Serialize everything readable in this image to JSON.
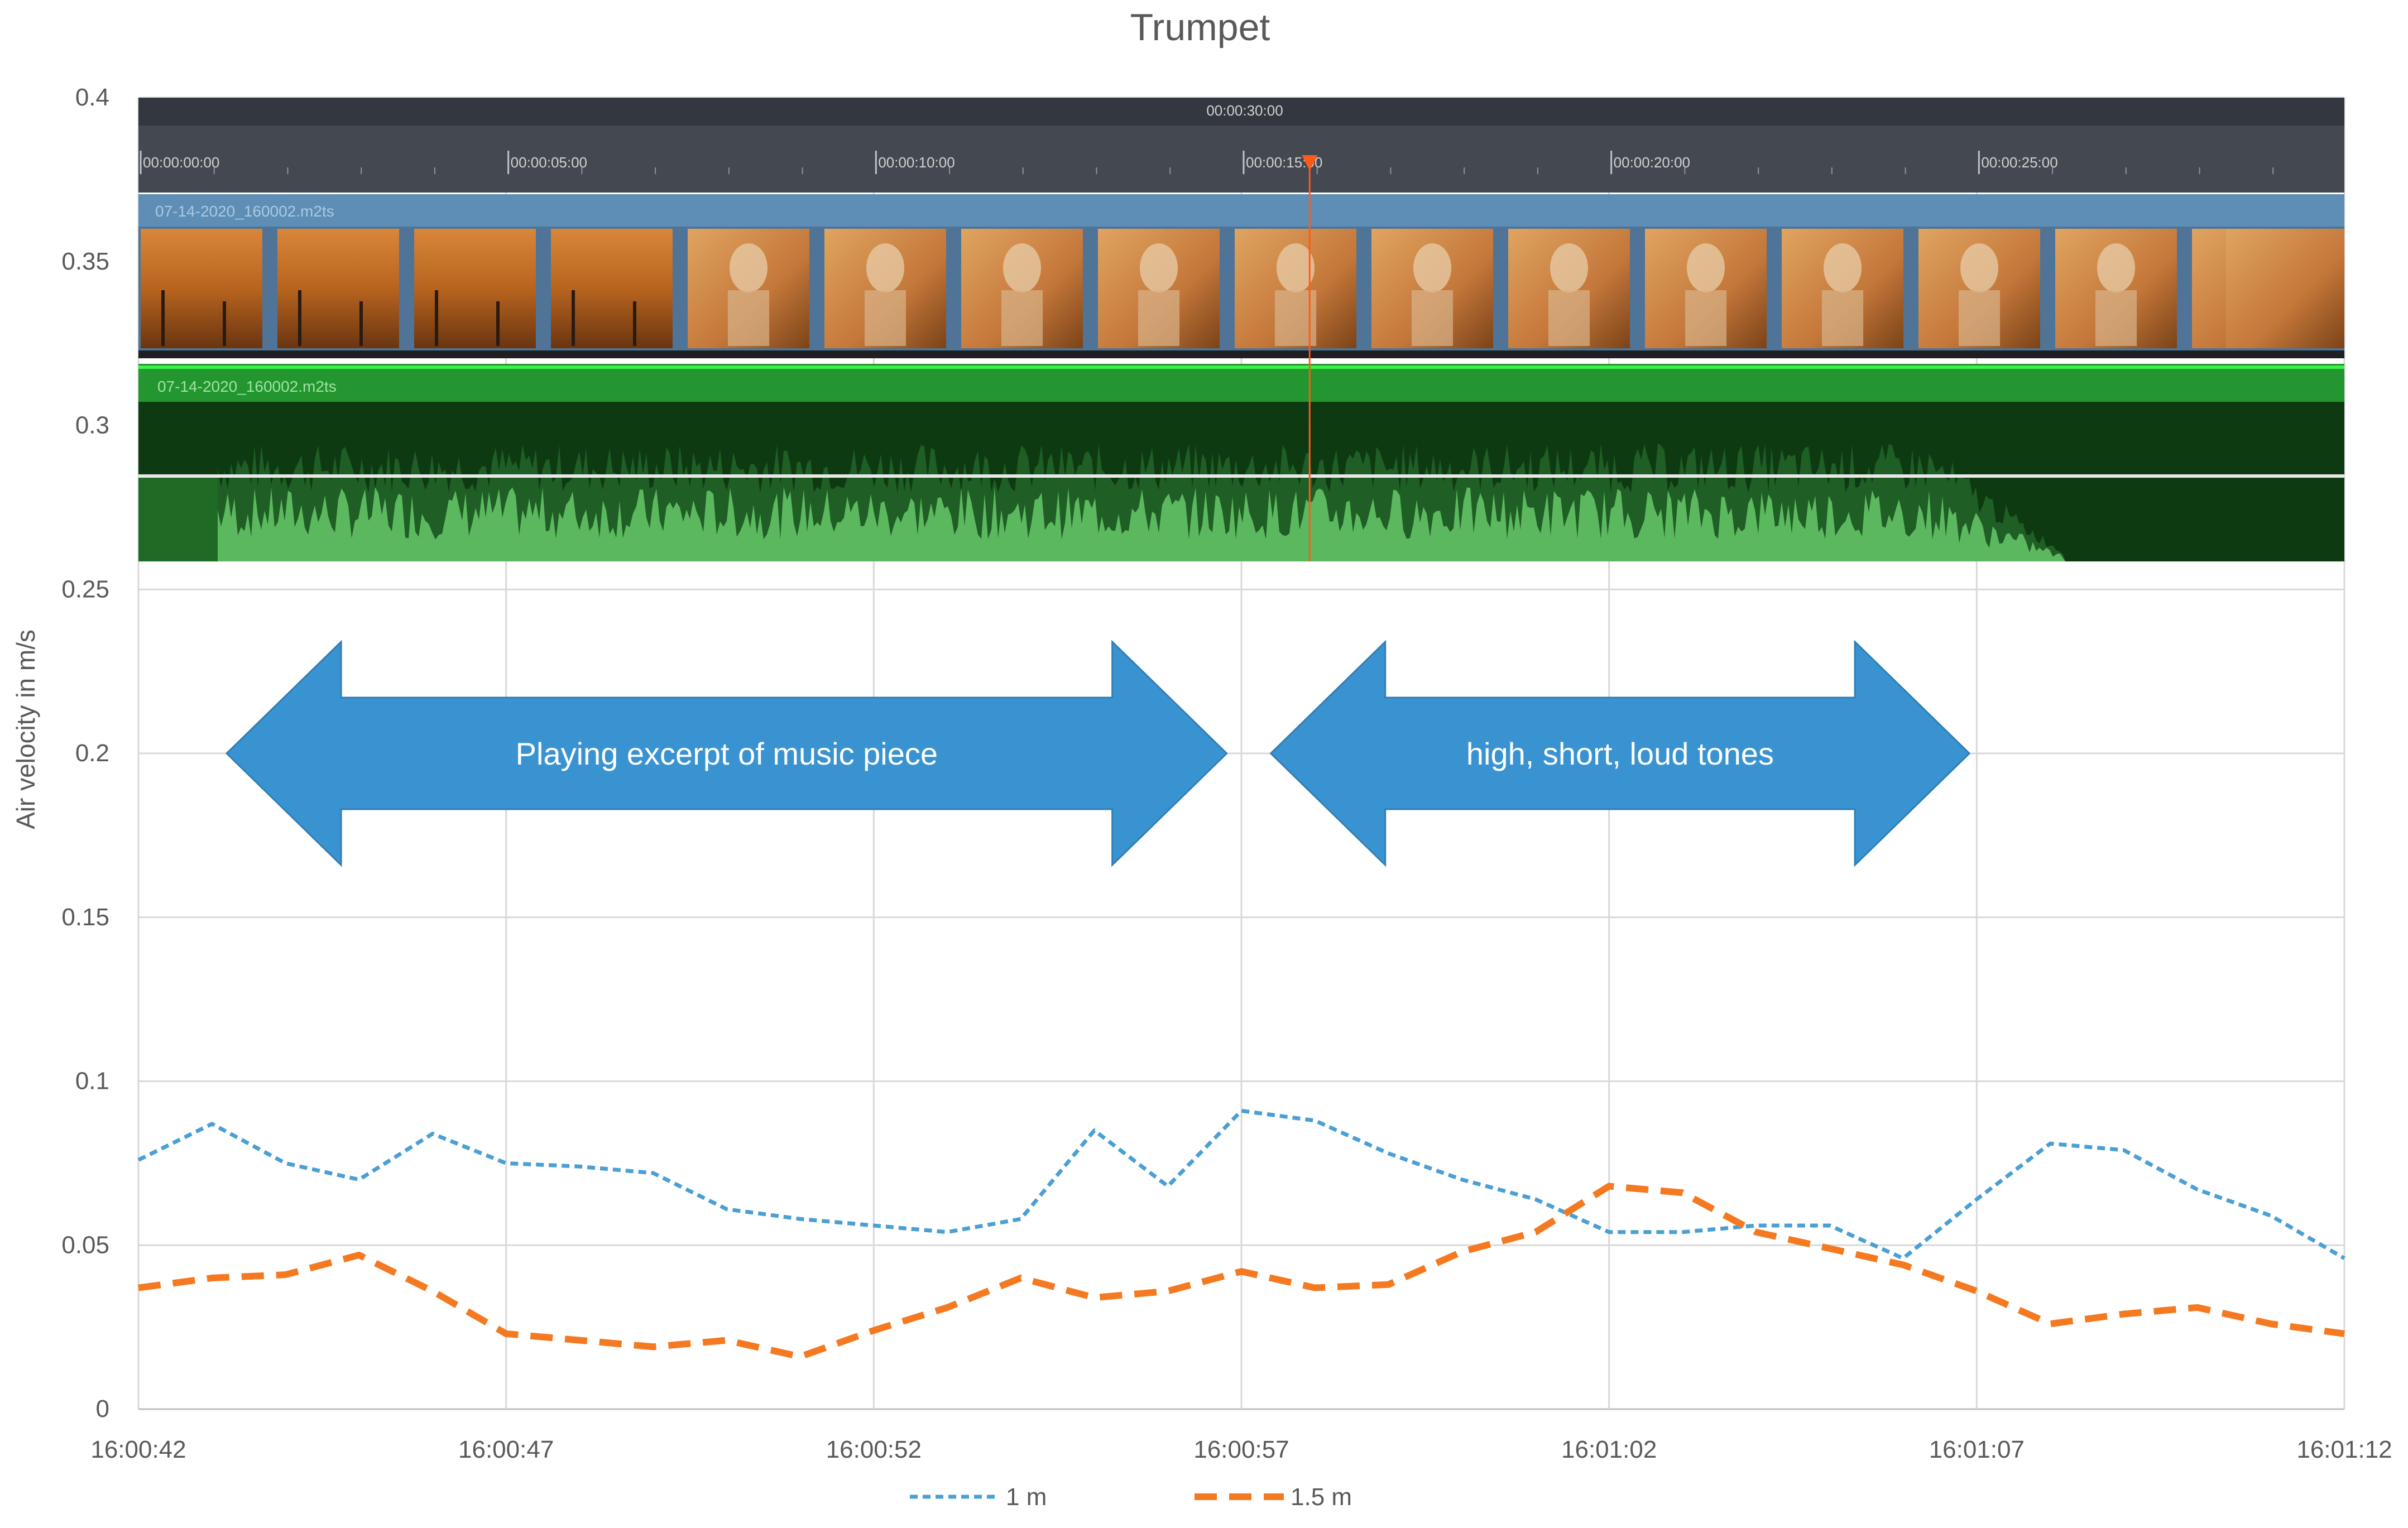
{
  "chart_data": {
    "type": "line",
    "title": "Trumpet",
    "xlabel": "",
    "ylabel": "Air velocity  in m/s",
    "ylim": [
      0,
      0.4
    ],
    "y_ticks": [
      "0",
      "0.05",
      "0.1",
      "0.15",
      "0.2",
      "0.25",
      "0.3",
      "0.35",
      "0.4"
    ],
    "xlim": [
      "16:00:42",
      "16:01:12"
    ],
    "x_ticks": [
      "16:00:42",
      "16:00:47",
      "16:00:52",
      "16:00:57",
      "16:01:02",
      "16:01:07",
      "16:01:12"
    ],
    "grid": true,
    "legend_position": "bottom",
    "x": [
      "16:00:42",
      "16:00:43",
      "16:00:44",
      "16:00:45",
      "16:00:46",
      "16:00:47",
      "16:00:48",
      "16:00:49",
      "16:00:50",
      "16:00:51",
      "16:00:52",
      "16:00:53",
      "16:00:54",
      "16:00:55",
      "16:00:56",
      "16:00:57",
      "16:00:58",
      "16:00:59",
      "16:01:00",
      "16:01:01",
      "16:01:02",
      "16:01:03",
      "16:01:04",
      "16:01:05",
      "16:01:06",
      "16:01:07",
      "16:01:08",
      "16:01:09",
      "16:01:10",
      "16:01:11",
      "16:01:12"
    ],
    "series": [
      {
        "name": "1 m",
        "color": "#4a9fd4",
        "dash": "short",
        "values": [
          0.076,
          0.087,
          0.075,
          0.07,
          0.084,
          0.075,
          0.074,
          0.072,
          0.061,
          0.058,
          0.056,
          0.054,
          0.058,
          0.085,
          0.068,
          0.091,
          0.088,
          0.078,
          0.07,
          0.064,
          0.054,
          0.054,
          0.056,
          0.056,
          0.046,
          0.064,
          0.081,
          0.079,
          0.067,
          0.059,
          0.046
        ]
      },
      {
        "name": "1.5 m",
        "color": "#f47920",
        "dash": "long",
        "values": [
          0.037,
          0.04,
          0.041,
          0.047,
          0.036,
          0.023,
          0.021,
          0.019,
          0.021,
          0.016,
          0.024,
          0.031,
          0.04,
          0.034,
          0.036,
          0.042,
          0.037,
          0.038,
          0.048,
          0.054,
          0.068,
          0.066,
          0.054,
          0.049,
          0.044,
          0.036,
          0.026,
          0.029,
          0.031,
          0.026,
          0.023
        ]
      }
    ],
    "annotations": [
      {
        "text": "Playing excerpt of music piece",
        "x_start": "16:00:43.2",
        "x_end": "16:00:56.8",
        "y": 0.2,
        "color": "#3a93d1"
      },
      {
        "text": "high, short, loud tones",
        "x_start": "16:00:57.4",
        "x_end": "16:01:06.9",
        "y": 0.2,
        "color": "#3a93d1"
      }
    ]
  },
  "video_editor_overlay": {
    "ruler_total": "00:00:30:00",
    "ruler_ticks": [
      "00:00:00:00",
      "00:00:05:00",
      "00:00:10:00",
      "00:00:15:00",
      "00:00:20:00",
      "00:00:25:00"
    ],
    "video_clip_name": "07-14-2020_160002.m2ts",
    "audio_clip_name": "07-14-2020_160002.m2ts",
    "playhead_time_fraction": 0.532
  }
}
